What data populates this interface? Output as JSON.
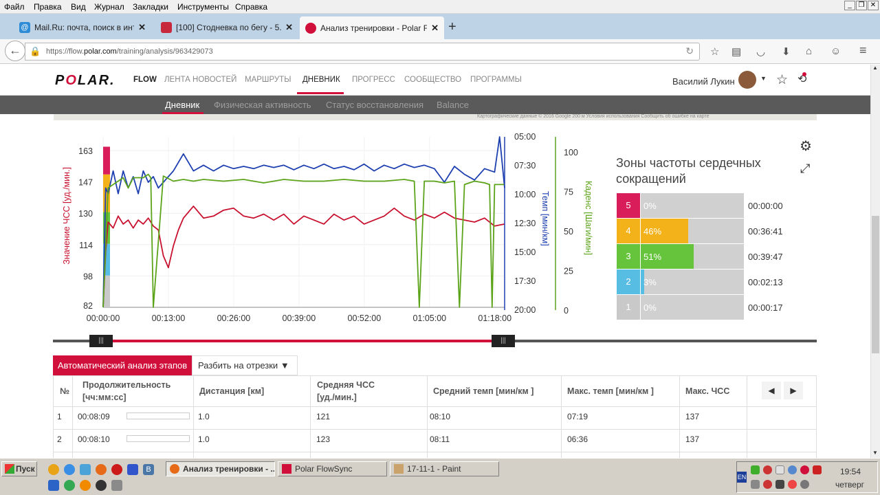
{
  "menu": [
    "Файл",
    "Правка",
    "Вид",
    "Журнал",
    "Закладки",
    "Инструменты",
    "Справка"
  ],
  "tabs": [
    {
      "title": "Mail.Ru: почта, поиск в инт...",
      "color": "#2e8bd6"
    },
    {
      "title": "[100] Стодневка по бегу - 5...",
      "color": "#c8283c"
    },
    {
      "title": "Анализ тренировки - Polar F...",
      "color": "#d0103a"
    }
  ],
  "url": {
    "prefix": "https://flow.",
    "domain": "polar.com",
    "path": "/training/analysis/963429073"
  },
  "polar": {
    "logo": "POLAR.",
    "flow": "FLOW",
    "nav": [
      "ЛЕНТА НОВОСТЕЙ",
      "МАРШРУТЫ",
      "ДНЕВНИК",
      "ПРОГРЕСС",
      "СООБЩЕСТВО",
      "ПРОГРАММЫ"
    ],
    "active_nav": "ДНЕВНИК",
    "user": "Василий Лукин",
    "subnav": [
      "Дневник",
      "Физическая активность",
      "Статус восстановления",
      "Balance"
    ],
    "map_credit": "Картографические данные © 2016 Google    200 м         Условия использования    Сообщить об ошибке на карте"
  },
  "chart_data": {
    "type": "line",
    "x_ticks": [
      "00:00:00",
      "00:13:00",
      "00:26:00",
      "00:39:00",
      "00:52:00",
      "01:05:00",
      "01:18:00"
    ],
    "hr_ticks": [
      "163",
      "147",
      "130",
      "114",
      "98",
      "82"
    ],
    "pace_ticks": [
      "05:00",
      "07:30",
      "10:00",
      "12:30",
      "15:00",
      "17:30",
      "20:00"
    ],
    "cadence_ticks": [
      "100",
      "75",
      "50",
      "25",
      "0"
    ],
    "ylabel_hr": "Значение ЧСС [уд./мин.]",
    "ylabel_pace": "Темп [мин/км]",
    "ylabel_cadence": "Каденс [Шаги/мин]",
    "x_range_min": [
      0,
      80
    ],
    "hr_range": [
      82,
      168
    ],
    "pace_range_min": [
      5,
      20
    ],
    "cadence_range": [
      0,
      100
    ],
    "series": [
      {
        "name": "Значение ЧСС [уд./мин.]",
        "color": "#c8102e",
        "x": [
          0,
          0.5,
          1,
          2,
          3,
          4,
          5,
          6,
          7,
          8,
          9,
          10,
          11,
          12,
          13,
          14,
          15,
          16,
          18,
          20,
          22,
          24,
          26,
          28,
          30,
          32,
          34,
          36,
          38,
          40,
          42,
          44,
          46,
          48,
          50,
          52,
          54,
          56,
          58,
          60,
          62,
          64,
          66,
          68,
          70,
          72,
          74,
          76,
          78,
          80
        ],
        "values": [
          82,
          110,
          125,
          122,
          128,
          124,
          126,
          122,
          126,
          124,
          127,
          123,
          121,
          108,
          102,
          113,
          121,
          127,
          133,
          127,
          128,
          131,
          132,
          128,
          127,
          129,
          126,
          129,
          124,
          128,
          126,
          124,
          129,
          126,
          128,
          124,
          126,
          128,
          132,
          128,
          126,
          129,
          127,
          130,
          127,
          126,
          125,
          127,
          123,
          124
        ]
      },
      {
        "name": "Темп [мин/км]",
        "color": "#1e3fb0",
        "x": [
          0,
          0.5,
          1,
          2,
          3,
          4,
          5,
          6,
          7,
          8,
          9,
          10,
          11,
          12,
          13,
          14,
          16,
          18,
          20,
          22,
          24,
          26,
          28,
          30,
          32,
          34,
          36,
          38,
          40,
          42,
          44,
          46,
          48,
          50,
          52,
          54,
          56,
          58,
          60,
          62,
          64,
          66,
          68,
          70,
          72,
          74,
          76,
          78,
          79,
          80
        ],
        "values": [
          20,
          9.5,
          10,
          8,
          10,
          8,
          9.5,
          8.5,
          10,
          8,
          9,
          8.5,
          9.5,
          9,
          8.5,
          8,
          6.5,
          8,
          7.5,
          8,
          7.5,
          7.8,
          7.6,
          7.8,
          7.5,
          7.7,
          7.5,
          7.9,
          7.5,
          7.8,
          7.4,
          7.8,
          7.6,
          7.9,
          7.4,
          8,
          7.5,
          7.8,
          7.4,
          7.7,
          7.5,
          7.8,
          9,
          7.6,
          8.3,
          8.8,
          7.8,
          8.1,
          5,
          9.5
        ]
      },
      {
        "name": "Каденс [Шаги/мин]",
        "color": "#5ba318",
        "x": [
          0,
          1,
          2,
          4,
          5,
          6,
          8,
          9,
          9.5,
          10,
          12,
          14,
          16,
          18,
          20,
          24,
          28,
          32,
          36,
          40,
          44,
          48,
          52,
          56,
          60,
          62,
          63,
          64,
          66,
          68,
          70,
          71,
          72,
          74,
          76,
          77,
          77.5,
          78,
          80
        ],
        "values": [
          0,
          70,
          72,
          76,
          70,
          76,
          76,
          78,
          76,
          0,
          77,
          74,
          75,
          74,
          75,
          74,
          75,
          73,
          75,
          74,
          74,
          75,
          74,
          74,
          75,
          74,
          0,
          74,
          74,
          73,
          74,
          0,
          72,
          74,
          73,
          72,
          0,
          72,
          72
        ]
      }
    ],
    "hr_zone_ticks": [
      {
        "zone": 5,
        "color": "#d91d5a",
        "from": 149,
        "to": 163
      },
      {
        "zone": 4,
        "color": "#f4b21a",
        "from": 130,
        "to": 149
      },
      {
        "zone": 3,
        "color": "#66c43c",
        "from": 114,
        "to": 130
      },
      {
        "zone": 2,
        "color": "#58bde3",
        "from": 98,
        "to": 114
      },
      {
        "zone": 1,
        "color": "#c9c9c9",
        "from": 82,
        "to": 98
      }
    ]
  },
  "zones": {
    "title": "Зоны частоты сердечных сокращений",
    "rows": [
      {
        "zone": "5",
        "pct": "0%",
        "pct_value": 0,
        "time": "00:00:00",
        "color": "#d91d5a"
      },
      {
        "zone": "4",
        "pct": "46%",
        "pct_value": 46,
        "time": "00:36:41",
        "color": "#f4b21a"
      },
      {
        "zone": "3",
        "pct": "51%",
        "pct_value": 51,
        "time": "00:39:47",
        "color": "#66c43c"
      },
      {
        "zone": "2",
        "pct": "3%",
        "pct_value": 3,
        "time": "00:02:13",
        "color": "#58bde3"
      },
      {
        "zone": "1",
        "pct": "0%",
        "pct_value": 0,
        "time": "00:00:17",
        "color": "#c9c9c9"
      }
    ]
  },
  "laps": {
    "auto_label": "Автоматический анализ этапов",
    "split_label": "Разбить на отрезки",
    "headers": [
      "№",
      "Продолжительность\n[чч:мм:сс]",
      "Дистанция [км]",
      "Средняя ЧСС\n[уд./мин.]",
      "Средний темп [мин/км ]",
      "Макс. темп [мин/км ]",
      "Макс. ЧСС"
    ],
    "rows": [
      {
        "n": "1",
        "duration": "00:08:09",
        "distance": "1.0",
        "avg_hr": "121",
        "avg_pace": "08:10",
        "max_pace": "07:19",
        "max_hr": "137"
      },
      {
        "n": "2",
        "duration": "00:08:10",
        "distance": "1.0",
        "avg_hr": "123",
        "avg_pace": "08:11",
        "max_pace": "06:36",
        "max_hr": "137"
      }
    ]
  },
  "taskbar": {
    "start": "Пуск",
    "items": [
      "Анализ тренировки - ...",
      "Polar FlowSync",
      "17-11-1 - Paint"
    ],
    "lang": "EN",
    "time": "19:54",
    "day": "четверг"
  }
}
